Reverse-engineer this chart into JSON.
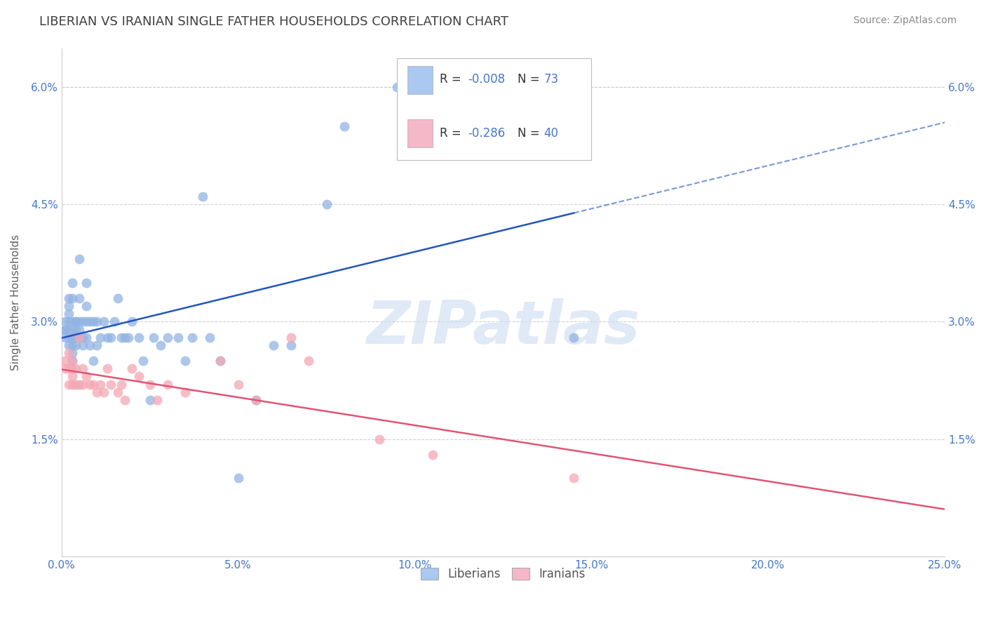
{
  "title": "LIBERIAN VS IRANIAN SINGLE FATHER HOUSEHOLDS CORRELATION CHART",
  "source": "Source: ZipAtlas.com",
  "ylabel": "Single Father Households",
  "xlabel": "",
  "watermark": "ZIPatlas",
  "xlim": [
    0.0,
    0.25
  ],
  "ylim": [
    0.0,
    0.065
  ],
  "xticks": [
    0.0,
    0.05,
    0.1,
    0.15,
    0.2,
    0.25
  ],
  "yticks": [
    0.0,
    0.015,
    0.03,
    0.045,
    0.06
  ],
  "xticklabels": [
    "0.0%",
    "5.0%",
    "10.0%",
    "15.0%",
    "20.0%",
    "25.0%"
  ],
  "yticklabels": [
    "",
    "1.5%",
    "3.0%",
    "4.5%",
    "6.0%"
  ],
  "liberian_R": -0.008,
  "liberian_N": 73,
  "iranian_R": -0.286,
  "iranian_N": 40,
  "liberian_color": "#92b4e3",
  "iranian_color": "#f4a7b4",
  "liberian_line_color": "#2255bb",
  "iranian_line_color": "#e05575",
  "legend_liberian_color": "#aac8f0",
  "legend_iranian_color": "#f4b8c8",
  "title_color": "#404040",
  "axis_color": "#4477cc",
  "grid_color": "#cccccc",
  "watermark_color": "#c8d8f0",
  "liberian_x": [
    0.001,
    0.001,
    0.001,
    0.001,
    0.002,
    0.002,
    0.002,
    0.002,
    0.002,
    0.002,
    0.002,
    0.003,
    0.003,
    0.003,
    0.003,
    0.003,
    0.003,
    0.003,
    0.003,
    0.004,
    0.004,
    0.004,
    0.004,
    0.004,
    0.005,
    0.005,
    0.005,
    0.005,
    0.005,
    0.006,
    0.006,
    0.006,
    0.007,
    0.007,
    0.007,
    0.007,
    0.008,
    0.008,
    0.009,
    0.009,
    0.01,
    0.01,
    0.011,
    0.012,
    0.013,
    0.014,
    0.015,
    0.016,
    0.017,
    0.018,
    0.019,
    0.02,
    0.022,
    0.023,
    0.025,
    0.026,
    0.028,
    0.03,
    0.033,
    0.035,
    0.037,
    0.04,
    0.042,
    0.045,
    0.05,
    0.055,
    0.06,
    0.065,
    0.075,
    0.08,
    0.095,
    0.11,
    0.145
  ],
  "liberian_y": [
    0.028,
    0.029,
    0.029,
    0.03,
    0.027,
    0.028,
    0.029,
    0.03,
    0.031,
    0.032,
    0.033,
    0.025,
    0.026,
    0.027,
    0.028,
    0.029,
    0.03,
    0.033,
    0.035,
    0.027,
    0.028,
    0.029,
    0.03,
    0.03,
    0.028,
    0.029,
    0.03,
    0.033,
    0.038,
    0.027,
    0.028,
    0.03,
    0.028,
    0.03,
    0.032,
    0.035,
    0.027,
    0.03,
    0.025,
    0.03,
    0.027,
    0.03,
    0.028,
    0.03,
    0.028,
    0.028,
    0.03,
    0.033,
    0.028,
    0.028,
    0.028,
    0.03,
    0.028,
    0.025,
    0.02,
    0.028,
    0.027,
    0.028,
    0.028,
    0.025,
    0.028,
    0.046,
    0.028,
    0.025,
    0.01,
    0.02,
    0.027,
    0.027,
    0.045,
    0.055,
    0.06,
    0.06,
    0.028
  ],
  "iranian_x": [
    0.001,
    0.001,
    0.002,
    0.002,
    0.002,
    0.003,
    0.003,
    0.003,
    0.003,
    0.004,
    0.004,
    0.005,
    0.005,
    0.006,
    0.006,
    0.007,
    0.008,
    0.009,
    0.01,
    0.011,
    0.012,
    0.013,
    0.014,
    0.016,
    0.017,
    0.018,
    0.02,
    0.022,
    0.025,
    0.027,
    0.03,
    0.035,
    0.045,
    0.05,
    0.055,
    0.065,
    0.07,
    0.09,
    0.105,
    0.145
  ],
  "iranian_y": [
    0.024,
    0.025,
    0.022,
    0.024,
    0.026,
    0.022,
    0.023,
    0.024,
    0.025,
    0.022,
    0.024,
    0.022,
    0.028,
    0.022,
    0.024,
    0.023,
    0.022,
    0.022,
    0.021,
    0.022,
    0.021,
    0.024,
    0.022,
    0.021,
    0.022,
    0.02,
    0.024,
    0.023,
    0.022,
    0.02,
    0.022,
    0.021,
    0.025,
    0.022,
    0.02,
    0.028,
    0.025,
    0.015,
    0.013,
    0.01
  ]
}
